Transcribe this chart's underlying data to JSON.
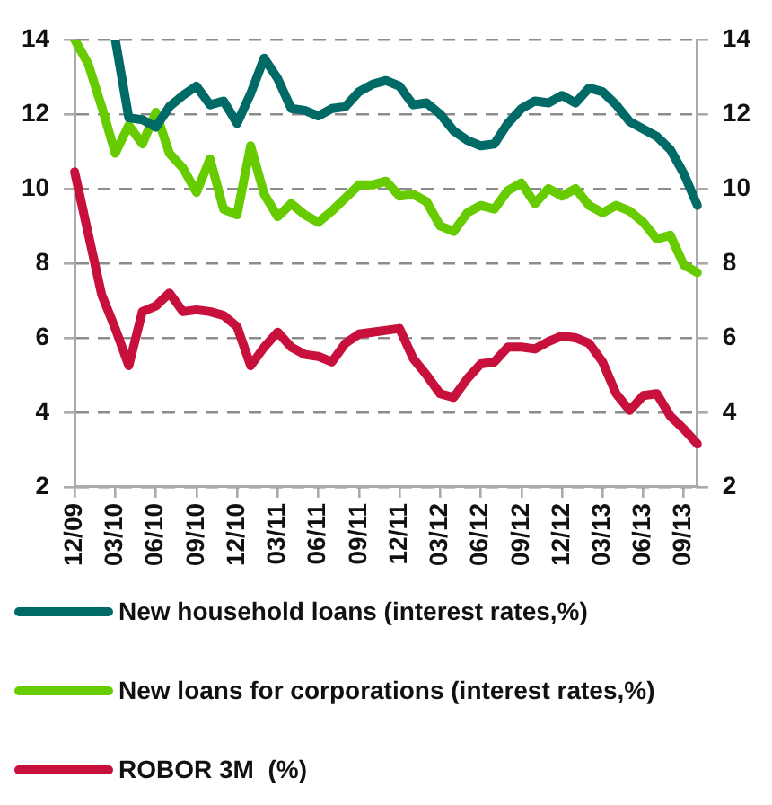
{
  "chart_data": {
    "type": "line",
    "categories": [
      "12/09",
      null,
      null,
      "03/10",
      null,
      null,
      "06/10",
      null,
      null,
      "09/10",
      null,
      null,
      "12/10",
      null,
      null,
      "03/11",
      null,
      null,
      "06/11",
      null,
      null,
      "09/11",
      null,
      null,
      "12/11",
      null,
      null,
      "03/12",
      null,
      null,
      "06/12",
      null,
      null,
      "09/12",
      null,
      null,
      "12/12",
      null,
      null,
      "03/13",
      null,
      null,
      "06/13",
      null,
      null,
      "09/13",
      null
    ],
    "series": [
      {
        "name": "New household loans (interest rates,%)",
        "color": "#006b66",
        "values": [
          null,
          null,
          null,
          14,
          11.9,
          11.85,
          11.65,
          12.2,
          12.5,
          12.75,
          12.25,
          12.35,
          11.75,
          12.55,
          13.5,
          12.95,
          12.15,
          12.1,
          11.95,
          12.15,
          12.2,
          12.6,
          12.8,
          12.9,
          12.75,
          12.25,
          12.3,
          12.0,
          11.55,
          11.3,
          11.15,
          11.2,
          11.75,
          12.15,
          12.35,
          12.3,
          12.5,
          12.3,
          12.7,
          12.6,
          12.25,
          11.8,
          11.6,
          11.4,
          11.05,
          10.4,
          9.55
        ]
      },
      {
        "name": "New loans for corporations (interest rates,%)",
        "color": "#66cc00",
        "values": [
          14,
          13.35,
          12.2,
          10.95,
          11.7,
          11.2,
          12.05,
          10.95,
          10.55,
          9.9,
          10.8,
          9.45,
          9.3,
          11.15,
          9.85,
          9.25,
          9.6,
          9.3,
          9.1,
          9.4,
          9.75,
          10.1,
          10.1,
          10.2,
          9.8,
          9.85,
          9.65,
          9.0,
          8.85,
          9.35,
          9.55,
          9.45,
          9.95,
          10.15,
          9.6,
          10.0,
          9.8,
          10.0,
          9.55,
          9.35,
          9.55,
          9.4,
          9.1,
          8.65,
          8.75,
          7.95,
          7.75
        ]
      },
      {
        "name": "ROBOR 3M  (%)",
        "color": "#c8103c",
        "values": [
          10.45,
          8.8,
          7.15,
          6.25,
          5.25,
          6.7,
          6.85,
          7.2,
          6.7,
          6.75,
          6.7,
          6.6,
          6.3,
          5.25,
          5.75,
          6.15,
          5.75,
          5.55,
          5.5,
          5.35,
          5.85,
          6.1,
          6.15,
          6.2,
          6.25,
          5.45,
          5.0,
          4.5,
          4.4,
          4.9,
          5.3,
          5.35,
          5.75,
          5.75,
          5.7,
          5.9,
          6.05,
          6.0,
          5.85,
          5.35,
          4.5,
          4.05,
          4.45,
          4.5,
          3.9,
          3.55,
          3.15
        ]
      }
    ],
    "ylim": [
      2,
      14
    ],
    "yticks": [
      2,
      4,
      6,
      8,
      10,
      12,
      14
    ],
    "y2lim": [
      2,
      14
    ],
    "y2ticks": [
      2,
      4,
      6,
      8,
      10,
      12,
      14
    ],
    "grid": "y",
    "legend": "bottom",
    "marker": "none",
    "line_style": "solid"
  }
}
